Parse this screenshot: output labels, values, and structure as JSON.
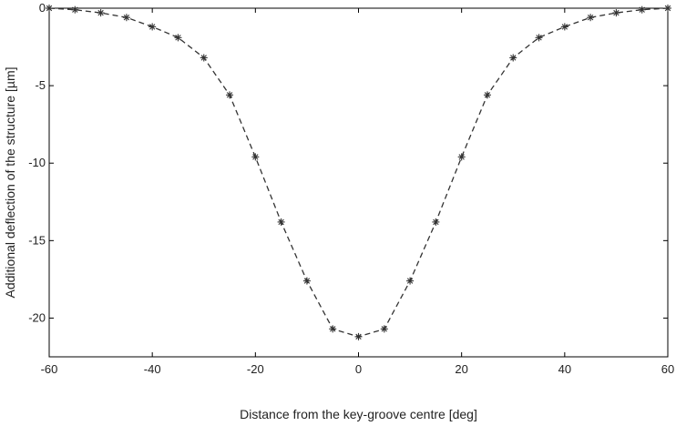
{
  "chart_data": {
    "type": "line",
    "title": "",
    "xlabel": "Distance from the key-groove centre [deg]",
    "ylabel": "Additional deflection of the structure [µm]",
    "xlim": [
      -60,
      60
    ],
    "ylim": [
      -22.5,
      0
    ],
    "xticks": [
      -60,
      -40,
      -20,
      0,
      20,
      40,
      60
    ],
    "yticks": [
      0,
      -5,
      -10,
      -15,
      -20
    ],
    "xtick_labels": [
      "-60",
      "-40",
      "-20",
      "0",
      "20",
      "40",
      "60"
    ],
    "ytick_labels": [
      "0",
      "-5",
      "-10",
      "-15",
      "-20"
    ],
    "grid": true,
    "series": [
      {
        "line_style": "dashed",
        "marker": "asterisk",
        "color": "#333333",
        "x": [
          -60,
          -55,
          -50,
          -45,
          -40,
          -35,
          -30,
          -25,
          -20,
          -15,
          -10,
          -5,
          0,
          5,
          10,
          15,
          20,
          25,
          30,
          35,
          40,
          45,
          50,
          55,
          60
        ],
        "y": [
          0,
          -0.1,
          -0.3,
          -0.6,
          -1.2,
          -1.9,
          -3.2,
          -5.6,
          -9.6,
          -13.8,
          -17.6,
          -20.7,
          -21.2,
          -20.7,
          -17.6,
          -13.8,
          -9.6,
          -5.6,
          -3.2,
          -1.9,
          -1.2,
          -0.6,
          -0.3,
          -0.1,
          0
        ]
      }
    ]
  }
}
